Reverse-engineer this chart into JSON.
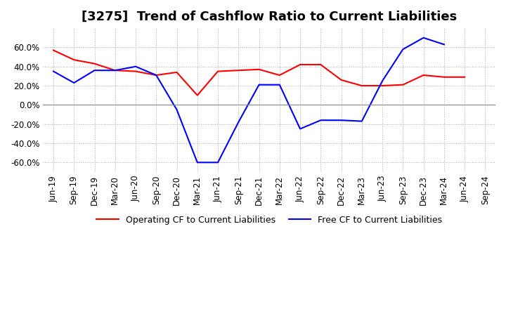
{
  "title": "[3275]  Trend of Cashflow Ratio to Current Liabilities",
  "legend_labels": [
    "Operating CF to Current Liabilities",
    "Free CF to Current Liabilities"
  ],
  "line_colors": [
    "#ff0000",
    "#0000ff"
  ],
  "x_labels": [
    "Jun-19",
    "Sep-19",
    "Dec-19",
    "Mar-20",
    "Jun-20",
    "Sep-20",
    "Dec-20",
    "Mar-21",
    "Jun-21",
    "Sep-21",
    "Dec-21",
    "Mar-22",
    "Jun-22",
    "Sep-22",
    "Dec-22",
    "Mar-23",
    "Jun-23",
    "Sep-23",
    "Dec-23",
    "Mar-24",
    "Jun-24",
    "Sep-24"
  ],
  "operating_cf": [
    57,
    47,
    43,
    36,
    35,
    31,
    34,
    10,
    35,
    36,
    37,
    31,
    42,
    42,
    26,
    20,
    20,
    21,
    31,
    29,
    29,
    null
  ],
  "free_cf": [
    35,
    23,
    36,
    36,
    40,
    31,
    -5,
    -60,
    -60,
    -18,
    21,
    21,
    -25,
    -16,
    -16,
    -17,
    25,
    58,
    70,
    63,
    null,
    null
  ],
  "ylim": [
    -70,
    80
  ],
  "yticks": [
    -60,
    -40,
    -20,
    0,
    20,
    40,
    60
  ],
  "background_color": "#ffffff",
  "grid_color": "#aaaaaa",
  "title_fontsize": 13,
  "tick_fontsize": 8.5
}
